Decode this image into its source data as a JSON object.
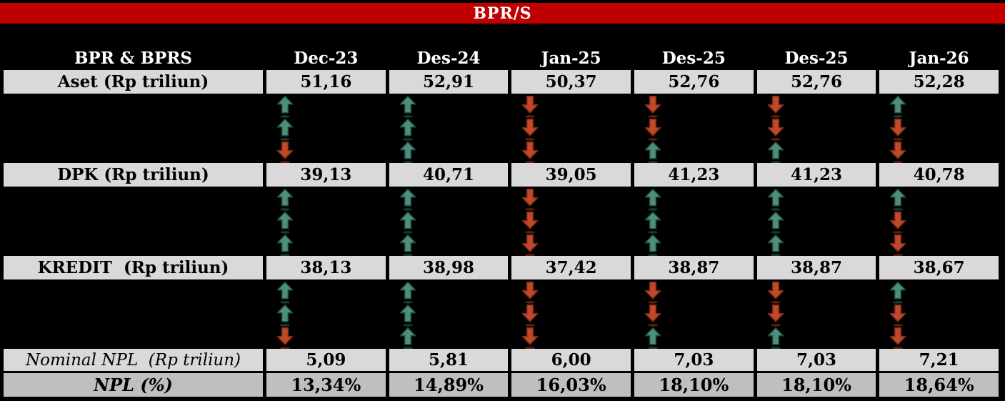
{
  "title": "BPR/S",
  "colors": {
    "band_red": "#c00000",
    "background_black": "#000000",
    "row_gray": "#d9d9d9",
    "npl_row_gray": "#bfbfbf",
    "arrow_up": {
      "fill": "#4e8e7c",
      "stroke": "#1f4c42",
      "shadow": "#173b33"
    },
    "arrow_down": {
      "fill": "#c14829",
      "stroke": "#7b2a12",
      "shadow": "#5f1f0c"
    }
  },
  "table": {
    "header": [
      "BPR & BPRS",
      "Dec-23",
      "Des-24",
      "Jan-25",
      "Des-25",
      "Des-25",
      "Jan-26"
    ],
    "rows": [
      {
        "label": "Aset (Rp triliun)",
        "values": [
          "51,16",
          "52,91",
          "50,37",
          "52,76",
          "52,76",
          "52,28"
        ]
      },
      {
        "label": "DPK (Rp triliun)",
        "values": [
          "39,13",
          "40,71",
          "39,05",
          "41,23",
          "41,23",
          "40,78"
        ]
      },
      {
        "label": "KREDIT  (Rp triliun)",
        "values": [
          "38,13",
          "38,98",
          "37,42",
          "38,87",
          "38,87",
          "38,67"
        ]
      },
      {
        "label": "Nominal NPL  (Rp triliun)",
        "values": [
          "5,09",
          "5,81",
          "6,00",
          "7,03",
          "7,03",
          "7,21"
        ]
      },
      {
        "label": "NPL (%)",
        "values": [
          "13,34%",
          "14,89%",
          "16,03%",
          "18,10%",
          "18,10%",
          "18,64%"
        ]
      }
    ],
    "arrow_blocks": [
      {
        "after_row": 0,
        "columns": [
          [
            "up",
            "up",
            "down"
          ],
          [
            "up",
            "up",
            "up"
          ],
          [
            "down",
            "down",
            "down"
          ],
          [
            "down",
            "down",
            "up"
          ],
          [
            "down",
            "down",
            "up"
          ],
          [
            "up",
            "down",
            "down"
          ]
        ]
      },
      {
        "after_row": 1,
        "columns": [
          [
            "up",
            "up",
            "up"
          ],
          [
            "up",
            "up",
            "up"
          ],
          [
            "down",
            "down",
            "down"
          ],
          [
            "up",
            "up",
            "up"
          ],
          [
            "up",
            "up",
            "up"
          ],
          [
            "up",
            "down",
            "down"
          ]
        ]
      },
      {
        "after_row": 2,
        "columns": [
          [
            "up",
            "up",
            "down"
          ],
          [
            "up",
            "up",
            "up"
          ],
          [
            "down",
            "down",
            "down"
          ],
          [
            "down",
            "down",
            "up"
          ],
          [
            "down",
            "down",
            "up"
          ],
          [
            "up",
            "down",
            "down"
          ]
        ]
      }
    ]
  }
}
